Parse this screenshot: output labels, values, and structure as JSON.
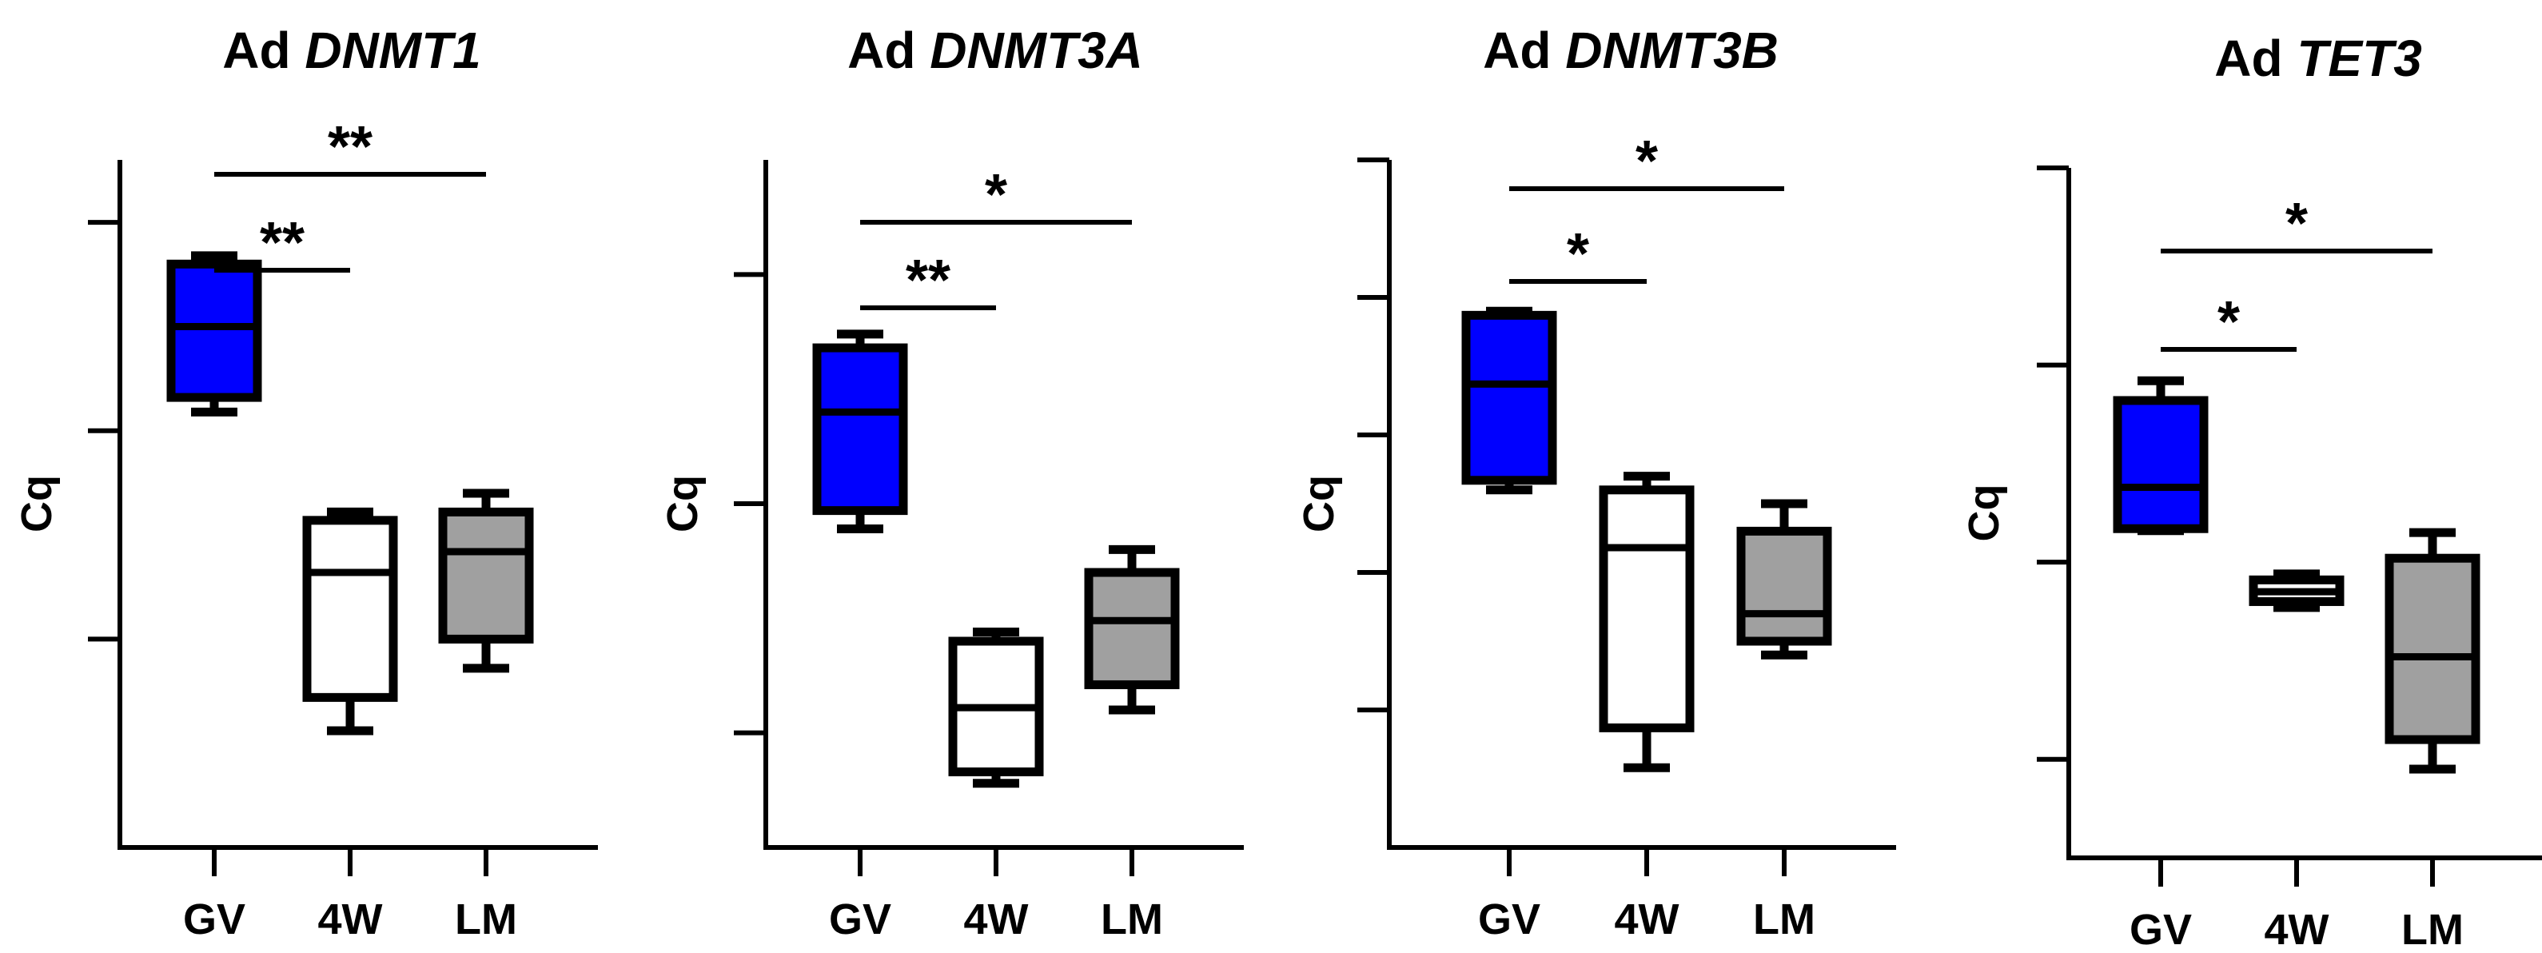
{
  "chart_data": [
    {
      "type": "boxplot",
      "title_prefix": "Ad",
      "title_gene": "DNMT1",
      "xlabel": "",
      "ylabel": "Cq",
      "categories": [
        "GV",
        "4W",
        "LM"
      ],
      "ylim": [
        0,
        3.3
      ],
      "yticks": [
        1,
        2,
        3
      ],
      "y_tick_labels_visible": false,
      "boxes": [
        {
          "category": "GV",
          "min": 2.09,
          "q1": 2.16,
          "median": 2.5,
          "q3": 2.8,
          "max": 2.84,
          "fill": "#0000ff"
        },
        {
          "category": "4W",
          "min": 0.56,
          "q1": 0.72,
          "median": 1.32,
          "q3": 1.57,
          "max": 1.61,
          "fill": "#ffffff"
        },
        {
          "category": "LM",
          "min": 0.86,
          "q1": 1.0,
          "median": 1.42,
          "q3": 1.61,
          "max": 1.7,
          "fill": "#a0a0a0"
        }
      ],
      "significance": [
        {
          "from": "GV",
          "to": "4W",
          "label": "**"
        },
        {
          "from": "GV",
          "to": "LM",
          "label": "**"
        }
      ]
    },
    {
      "type": "boxplot",
      "title_prefix": "Ad",
      "title_gene": "DNMT3A",
      "xlabel": "",
      "ylabel": "Cq",
      "categories": [
        "GV",
        "4W",
        "LM"
      ],
      "ylim": [
        0,
        3.0
      ],
      "yticks": [
        0.5,
        1.5,
        2.5
      ],
      "y_tick_labels_visible": false,
      "boxes": [
        {
          "category": "GV",
          "min": 1.39,
          "q1": 1.47,
          "median": 1.9,
          "q3": 2.18,
          "max": 2.24,
          "fill": "#0000ff"
        },
        {
          "category": "4W",
          "min": 0.28,
          "q1": 0.33,
          "median": 0.61,
          "q3": 0.9,
          "max": 0.94,
          "fill": "#ffffff"
        },
        {
          "category": "LM",
          "min": 0.6,
          "q1": 0.71,
          "median": 0.99,
          "q3": 1.2,
          "max": 1.3,
          "fill": "#a0a0a0"
        }
      ],
      "significance": [
        {
          "from": "GV",
          "to": "4W",
          "label": "**"
        },
        {
          "from": "GV",
          "to": "LM",
          "label": "*"
        }
      ]
    },
    {
      "type": "boxplot",
      "title_prefix": "Ad",
      "title_gene": "DNMT3B",
      "xlabel": "",
      "ylabel": "Cq",
      "categories": [
        "GV",
        "4W",
        "LM"
      ],
      "ylim": [
        0,
        5.0
      ],
      "yticks": [
        1,
        2,
        3,
        4,
        5
      ],
      "y_tick_labels_visible": false,
      "boxes": [
        {
          "category": "GV",
          "min": 2.6,
          "q1": 2.67,
          "median": 3.37,
          "q3": 3.87,
          "max": 3.9,
          "fill": "#0000ff"
        },
        {
          "category": "4W",
          "min": 0.58,
          "q1": 0.87,
          "median": 2.18,
          "q3": 2.6,
          "max": 2.7,
          "fill": "#ffffff"
        },
        {
          "category": "LM",
          "min": 1.4,
          "q1": 1.5,
          "median": 1.7,
          "q3": 2.3,
          "max": 2.5,
          "fill": "#a0a0a0"
        }
      ],
      "significance": [
        {
          "from": "GV",
          "to": "4W",
          "label": "*"
        },
        {
          "from": "GV",
          "to": "LM",
          "label": "*"
        }
      ]
    },
    {
      "type": "boxplot",
      "title_prefix": "Ad",
      "title_gene": "TET3",
      "xlabel": "",
      "ylabel": "Cq",
      "categories": [
        "GV",
        "4W",
        "LM"
      ],
      "ylim": [
        0,
        3.5
      ],
      "yticks": [
        0.5,
        1.5,
        2.5,
        3.5
      ],
      "y_tick_labels_visible": false,
      "boxes": [
        {
          "category": "GV",
          "min": 1.66,
          "q1": 1.67,
          "median": 1.88,
          "q3": 2.32,
          "max": 2.42,
          "fill": "#0000ff"
        },
        {
          "category": "4W",
          "min": 1.27,
          "q1": 1.3,
          "median": 1.35,
          "q3": 1.41,
          "max": 1.44,
          "fill": "#ffffff"
        },
        {
          "category": "LM",
          "min": 0.45,
          "q1": 0.6,
          "median": 1.02,
          "q3": 1.52,
          "max": 1.65,
          "fill": "#a0a0a0"
        }
      ],
      "significance": [
        {
          "from": "GV",
          "to": "4W",
          "label": "*"
        },
        {
          "from": "GV",
          "to": "LM",
          "label": "*"
        }
      ]
    }
  ],
  "colors": {
    "axis": "#000000",
    "gv_fill": "#0000ff",
    "w4_fill": "#ffffff",
    "lm_fill": "#a0a0a0"
  }
}
